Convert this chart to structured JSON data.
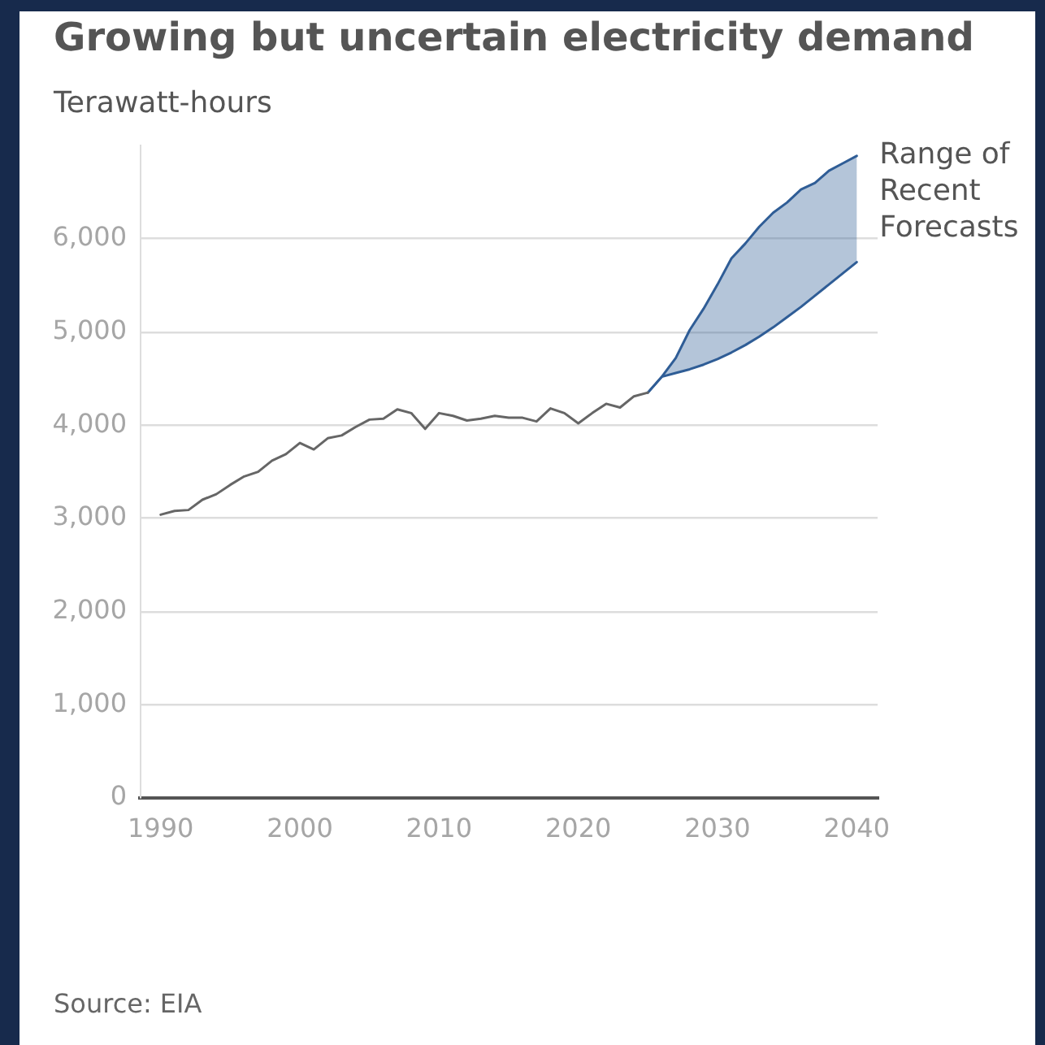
{
  "chart_data": {
    "type": "line",
    "title": "Growing but uncertain electricity demand",
    "ylabel": "Terawatt-hours",
    "annotations": [
      "Source: EIA"
    ],
    "series": [
      {
        "type": "line",
        "color": "#666666",
        "x": [
          1990,
          1991,
          1992,
          1993,
          1994,
          1995,
          1996,
          1997,
          1998,
          1999,
          2000,
          2001,
          2002,
          2003,
          2004,
          2005,
          2006,
          2007,
          2008,
          2009,
          2010,
          2011,
          2012,
          2013,
          2014,
          2015,
          2016,
          2017,
          2018,
          2019,
          2020,
          2021,
          2022,
          2023,
          2024,
          2025
        ],
        "values": [
          3040,
          3080,
          3090,
          3200,
          3260,
          3360,
          3450,
          3500,
          3620,
          3690,
          3810,
          3740,
          3860,
          3890,
          3980,
          4060,
          4070,
          4170,
          4130,
          3960,
          4130,
          4100,
          4050,
          4070,
          4100,
          4080,
          4080,
          4040,
          4180,
          4130,
          4020,
          4130,
          4230,
          4190,
          4310,
          4350
        ]
      },
      {
        "name": "Range of Recent Forecasts",
        "type": "line",
        "color": "#2f5d96",
        "x": [
          2025,
          2026,
          2027,
          2028,
          2029,
          2030,
          2031,
          2032,
          2033,
          2034,
          2035,
          2036,
          2037,
          2038,
          2039,
          2040
        ],
        "values": [
          4350,
          4520,
          4720,
          5020,
          5250,
          5510,
          5790,
          5950,
          6130,
          6280,
          6390,
          6530,
          6600,
          6730,
          6810,
          6890
        ],
        "lower": [
          4350,
          4520,
          4560,
          4600,
          4650,
          4710,
          4780,
          4860,
          4950,
          5050,
          5160,
          5270,
          5390,
          5510,
          5630,
          5750
        ],
        "upper": [
          4350,
          4520,
          4720,
          5020,
          5250,
          5510,
          5790,
          5950,
          6130,
          6280,
          6390,
          6530,
          6600,
          6730,
          6810,
          6890
        ]
      },
      {
        "type": "line",
        "color": "#2f5d96",
        "x": [
          2025,
          2026,
          2027,
          2028,
          2029,
          2030,
          2031,
          2032,
          2033,
          2034,
          2035,
          2036,
          2037,
          2038,
          2039,
          2040
        ],
        "values": [
          4350,
          4520,
          4560,
          4600,
          4650,
          4710,
          4780,
          4860,
          4950,
          5050,
          5160,
          5270,
          5390,
          5510,
          5630,
          5750
        ]
      }
    ],
    "xlim": [
      1988.5,
      2041.5
    ],
    "xticks": [
      1990,
      2000,
      2010,
      2020,
      2030,
      2040
    ],
    "ylim": [
      0,
      7000
    ],
    "yticks": [
      0,
      {
        "value": 1000,
        "label": "1,000"
      },
      {
        "value": 2000,
        "label": "2,000"
      },
      {
        "value": 3000,
        "label": "3,000"
      },
      {
        "value": 4000,
        "label": "4,000"
      },
      {
        "value": 5000,
        "label": "5,000"
      },
      {
        "value": 6000,
        "label": "6,000"
      }
    ],
    "grid": "y",
    "marker": "none",
    "line_style": "solid"
  }
}
